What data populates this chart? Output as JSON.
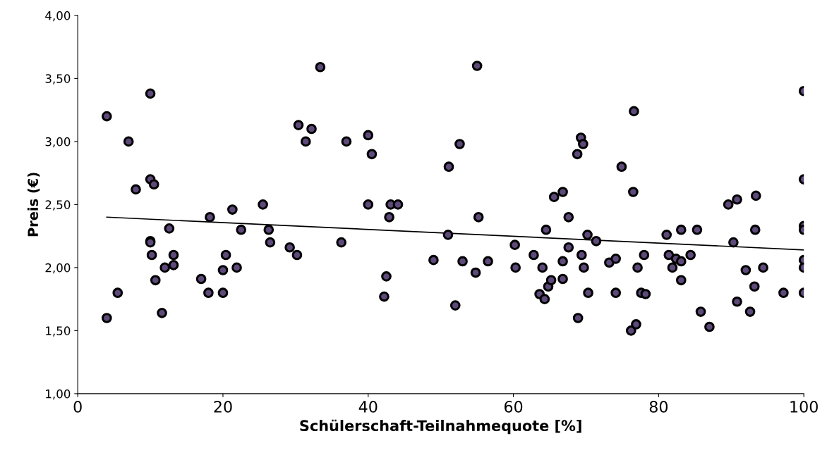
{
  "chart_data": {
    "type": "scatter",
    "xlabel": "Schülerschaft-Teilnahmequote [%]",
    "ylabel": "Preis (€)",
    "xlim": [
      0,
      100
    ],
    "xticks": [
      0,
      20,
      40,
      60,
      80,
      100
    ],
    "ylim": [
      1,
      4
    ],
    "yticks": [
      {
        "value": 1,
        "label": "1,00"
      },
      {
        "value": 1.5,
        "label": "1,50"
      },
      {
        "value": 2,
        "label": "2,00"
      },
      {
        "value": 2.5,
        "label": "2,50"
      },
      {
        "value": 3,
        "label": "3,00"
      },
      {
        "value": 3.5,
        "label": "3,50"
      },
      {
        "value": 4,
        "label": "4,00"
      }
    ],
    "grid": false,
    "series": [
      {
        "marker": "circle",
        "color": "#5e4a7a",
        "x": [
          4,
          4,
          5.5,
          7,
          8,
          10,
          10,
          10,
          10,
          10.2,
          10.5,
          10.7,
          11.6,
          12,
          12.6,
          13.2,
          13.2,
          17,
          18,
          18.2,
          20,
          20,
          20.4,
          21.3,
          21.9,
          22.5,
          25.5,
          26.3,
          26.5,
          29.2,
          30.2,
          30.4,
          31.4,
          32.2,
          33.4,
          36.3,
          37,
          40,
          40,
          40.5,
          42.2,
          42.5,
          42.9,
          43.1,
          44.1,
          49,
          51,
          51.1,
          52,
          52.6,
          53,
          54.8,
          55,
          55.2,
          56.5,
          60.2,
          60.3,
          62.8,
          63.6,
          64,
          64.3,
          64.5,
          64.8,
          65.2,
          65.6,
          66.8,
          66.8,
          66.8,
          67.6,
          67.6,
          68.8,
          68.9,
          69.3,
          69.4,
          69.6,
          69.7,
          70.2,
          70.3,
          71.4,
          73.2,
          74.1,
          74.1,
          74.9,
          76.2,
          76.5,
          76.6,
          76.9,
          77.1,
          77.6,
          78,
          78.2,
          81.1,
          81.4,
          81.9,
          82.4,
          83.1,
          83.1,
          83.1,
          84.4,
          85.3,
          85.8,
          87,
          89.6,
          90.3,
          90.8,
          90.8,
          92,
          92.6,
          93.2,
          93.3,
          93.4,
          94.4,
          97.2,
          100,
          100,
          100,
          100,
          100,
          100,
          100
        ],
        "values": [
          3.2,
          1.6,
          1.8,
          3.0,
          2.62,
          3.38,
          2.7,
          2.21,
          2.2,
          2.1,
          2.66,
          1.9,
          1.64,
          2.0,
          2.31,
          2.1,
          2.02,
          1.91,
          1.8,
          2.4,
          1.8,
          1.98,
          2.1,
          2.46,
          2.0,
          2.3,
          2.5,
          2.3,
          2.2,
          2.16,
          2.1,
          3.13,
          3.0,
          3.1,
          3.59,
          2.2,
          3.0,
          3.05,
          2.5,
          2.9,
          1.77,
          1.93,
          2.4,
          2.5,
          2.5,
          2.06,
          2.26,
          2.8,
          1.7,
          2.98,
          2.05,
          1.96,
          3.6,
          2.4,
          2.05,
          2.18,
          2.0,
          2.1,
          1.79,
          2.0,
          1.75,
          2.3,
          1.85,
          1.9,
          2.56,
          2.6,
          1.91,
          2.05,
          2.4,
          2.16,
          2.9,
          1.6,
          3.03,
          2.1,
          2.98,
          2.0,
          2.26,
          1.8,
          2.21,
          2.04,
          2.07,
          1.8,
          2.8,
          1.5,
          2.6,
          3.24,
          1.55,
          2.0,
          1.8,
          2.1,
          1.79,
          2.26,
          2.1,
          2.0,
          2.07,
          2.3,
          1.9,
          2.05,
          2.1,
          2.3,
          1.65,
          1.53,
          2.5,
          2.2,
          2.54,
          1.73,
          1.98,
          1.65,
          1.85,
          2.3,
          2.57,
          2.0,
          1.8,
          3.4,
          2.7,
          2.33,
          2.3,
          2.06,
          2.0,
          1.8
        ]
      },
      {
        "type": "line",
        "color": "#000000",
        "x": [
          4,
          100
        ],
        "values": [
          2.4,
          2.14
        ]
      }
    ]
  }
}
